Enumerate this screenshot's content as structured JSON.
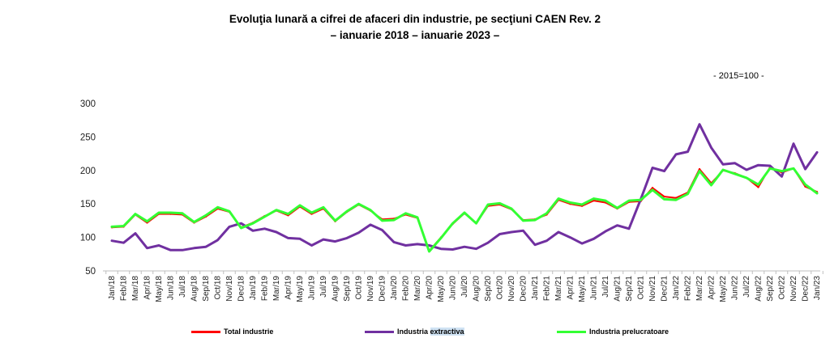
{
  "header": {
    "title_line1": "Evoluţia lunară a cifrei de afaceri din industrie, pe secţiuni CAEN Rev. 2",
    "title_line2": "–  ianuarie 2018 – ianuarie 2023 –",
    "base_note": "- 2015=100 -"
  },
  "chart_data": {
    "type": "line",
    "grid": false,
    "legend_position": "bottom",
    "ylim": [
      50,
      300
    ],
    "yticks": [
      50,
      100,
      150,
      200,
      250,
      300
    ],
    "categories": [
      "Jan/18",
      "Feb/18",
      "Mar/18",
      "Apr/18",
      "May/18",
      "Jun/18",
      "Jul/18",
      "Aug/18",
      "Sep/18",
      "Oct/18",
      "Nov/18",
      "Dec/18",
      "Jan/19",
      "Feb/19",
      "Mar/19",
      "Apr/19",
      "May/19",
      "Jun/19",
      "Jul/19",
      "Aug/19",
      "Sep/19",
      "Oct/19",
      "Nov/19",
      "Dec/19",
      "Jan/20",
      "Feb/20",
      "Mar/20",
      "Apr/20",
      "May/20",
      "Jun/20",
      "Jul/20",
      "Aug/20",
      "Sep/20",
      "Oct/20",
      "Nov/20",
      "Dec/20",
      "Jan/21",
      "Feb/21",
      "Mar/21",
      "Apr/21",
      "May/21",
      "Jun/21",
      "Jul/21",
      "Aug/21",
      "Sep/21",
      "Oct/21",
      "Nov/21",
      "Dec/21",
      "Jan/22",
      "Feb/22",
      "Mar/22",
      "Apr/22",
      "May/22",
      "Jun/22",
      "Jul/22",
      "Aug/22",
      "Sep/22",
      "Oct/22",
      "Nov/22",
      "Dec/22",
      "Jan/23"
    ],
    "series": [
      {
        "name": "Total industrie",
        "color": "#ff0000",
        "width": 2,
        "values": [
          115,
          116,
          134,
          122,
          135,
          135,
          134,
          122,
          131,
          143,
          138,
          115,
          122,
          132,
          140,
          133,
          146,
          135,
          143,
          124,
          138,
          149,
          140,
          127,
          128,
          134,
          129,
          80,
          100,
          120,
          136,
          121,
          147,
          149,
          142,
          126,
          127,
          134,
          156,
          150,
          147,
          155,
          152,
          143,
          153,
          154,
          174,
          161,
          159,
          167,
          202,
          181,
          200,
          196,
          189,
          175,
          205,
          197,
          203,
          176,
          168
        ]
      },
      {
        "name": "Industria extractiva",
        "color": "#7030a0",
        "width": 3,
        "values": [
          95,
          92,
          106,
          84,
          88,
          81,
          81,
          84,
          86,
          96,
          116,
          121,
          110,
          113,
          108,
          99,
          98,
          88,
          97,
          94,
          99,
          107,
          119,
          111,
          93,
          88,
          90,
          88,
          83,
          82,
          86,
          83,
          92,
          105,
          108,
          110,
          89,
          95,
          108,
          100,
          91,
          98,
          109,
          118,
          113,
          157,
          204,
          199,
          224,
          228,
          269,
          234,
          209,
          211,
          201,
          208,
          207,
          191,
          240,
          202,
          227
        ]
      },
      {
        "name": "Industria prelucratoare",
        "color": "#33ff33",
        "width": 3,
        "values": [
          116,
          117,
          135,
          124,
          137,
          137,
          136,
          123,
          133,
          145,
          139,
          114,
          121,
          131,
          141,
          135,
          148,
          137,
          145,
          125,
          139,
          150,
          141,
          125,
          126,
          136,
          130,
          79,
          99,
          121,
          137,
          121,
          149,
          151,
          143,
          125,
          126,
          136,
          158,
          152,
          149,
          158,
          155,
          144,
          155,
          156,
          171,
          157,
          156,
          165,
          199,
          178,
          201,
          195,
          189,
          179,
          203,
          199,
          203,
          179,
          166
        ]
      }
    ]
  },
  "legend": {
    "items": [
      {
        "label": "Total industrie",
        "color": "#ff0000"
      },
      {
        "label": "Industria",
        "label_tail": "extractiva",
        "color": "#7030a0"
      },
      {
        "label": "Industria prelucratoare",
        "color": "#33ff33"
      }
    ]
  }
}
